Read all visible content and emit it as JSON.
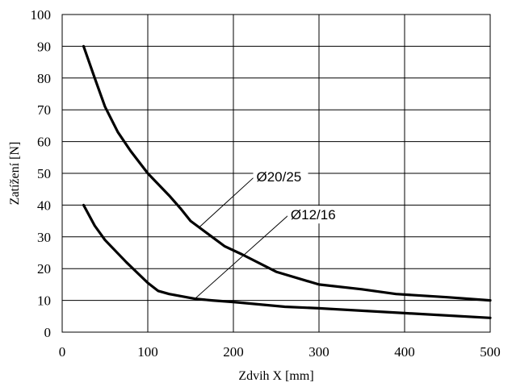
{
  "chart_data": {
    "type": "line",
    "title": "",
    "xlabel": "Zdvih X [mm]",
    "ylabel": "Zatížení [N]",
    "xlim": [
      0,
      500
    ],
    "ylim": [
      0,
      100
    ],
    "xticks": [
      0,
      100,
      200,
      300,
      400,
      500
    ],
    "yticks": [
      0,
      10,
      20,
      30,
      40,
      50,
      60,
      70,
      80,
      90,
      100
    ],
    "grid": true,
    "legend": "none",
    "line_color": "#000000",
    "series": [
      {
        "name": "Ø20/25",
        "x": [
          25,
          38,
          50,
          65,
          80,
          100,
          125,
          138,
          150,
          160,
          175,
          190,
          210,
          250,
          300,
          350,
          390,
          450,
          500
        ],
        "y": [
          90,
          80,
          71,
          63,
          57,
          50,
          43,
          39,
          35,
          33,
          30,
          27,
          24.5,
          19,
          15,
          13.5,
          12,
          11,
          10
        ]
      },
      {
        "name": "Ø12/16",
        "x": [
          25,
          38,
          50,
          75,
          100,
          112,
          125,
          155,
          175,
          200,
          260,
          300,
          400,
          500
        ],
        "y": [
          40,
          33.5,
          29,
          22,
          15.5,
          13,
          12,
          10.5,
          10,
          9.5,
          8,
          7.5,
          6,
          4.5
        ]
      }
    ],
    "annotations": [
      {
        "text": "Ø20/25",
        "series": "Ø20/25",
        "point": [
          160,
          33
        ],
        "label_at": [
          225,
          49
        ]
      },
      {
        "text": "Ø12/16",
        "series": "Ø12/16",
        "point": [
          155,
          10.5
        ],
        "label_at": [
          265,
          37
        ]
      }
    ]
  }
}
